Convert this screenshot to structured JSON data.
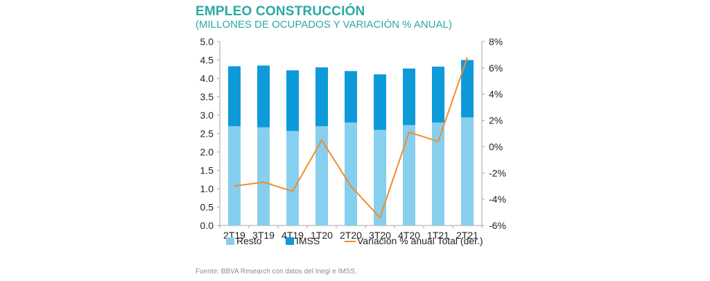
{
  "title": "EMPLEO CONSTRUCCIÓN",
  "subtitle": "(MILLONES DE OCUPADOS Y VARIACIÓN % ANUAL)",
  "source": "Fuente: BBVA Research con datos del Inegi e IMSS.",
  "colors": {
    "resto": "#87cfee",
    "imss": "#0e9ad9",
    "line": "#f28c28",
    "title": "#2aa9a5"
  },
  "chart_data": {
    "type": "bar",
    "stacked": true,
    "categories": [
      "2T19",
      "3T19",
      "4T19",
      "1T20",
      "2T20",
      "3T20",
      "4T20",
      "1T21",
      "2T21"
    ],
    "series": [
      {
        "name": "Resto",
        "values": [
          2.7,
          2.67,
          2.57,
          2.7,
          2.8,
          2.6,
          2.73,
          2.8,
          2.94
        ]
      },
      {
        "name": "IMSS",
        "values": [
          1.63,
          1.68,
          1.65,
          1.6,
          1.4,
          1.51,
          1.54,
          1.52,
          1.56
        ]
      }
    ],
    "line_series": {
      "name": "Variación % anual Total (der.)",
      "axis": "right",
      "values": [
        -3.0,
        -2.7,
        -3.4,
        0.5,
        -3.0,
        -5.4,
        1.1,
        0.4,
        6.8
      ]
    },
    "y_left": {
      "min": 0,
      "max": 5,
      "ticks": [
        "0.0",
        "0.5",
        "1.0",
        "1.5",
        "2.0",
        "2.5",
        "3.0",
        "3.5",
        "4.0",
        "4.5",
        "5.0"
      ]
    },
    "y_right": {
      "min": -6,
      "max": 8,
      "ticks": [
        "-6%",
        "-4%",
        "-2%",
        "0%",
        "2%",
        "4%",
        "6%",
        "8%"
      ]
    },
    "grid": false,
    "legend_position": "bottom"
  }
}
